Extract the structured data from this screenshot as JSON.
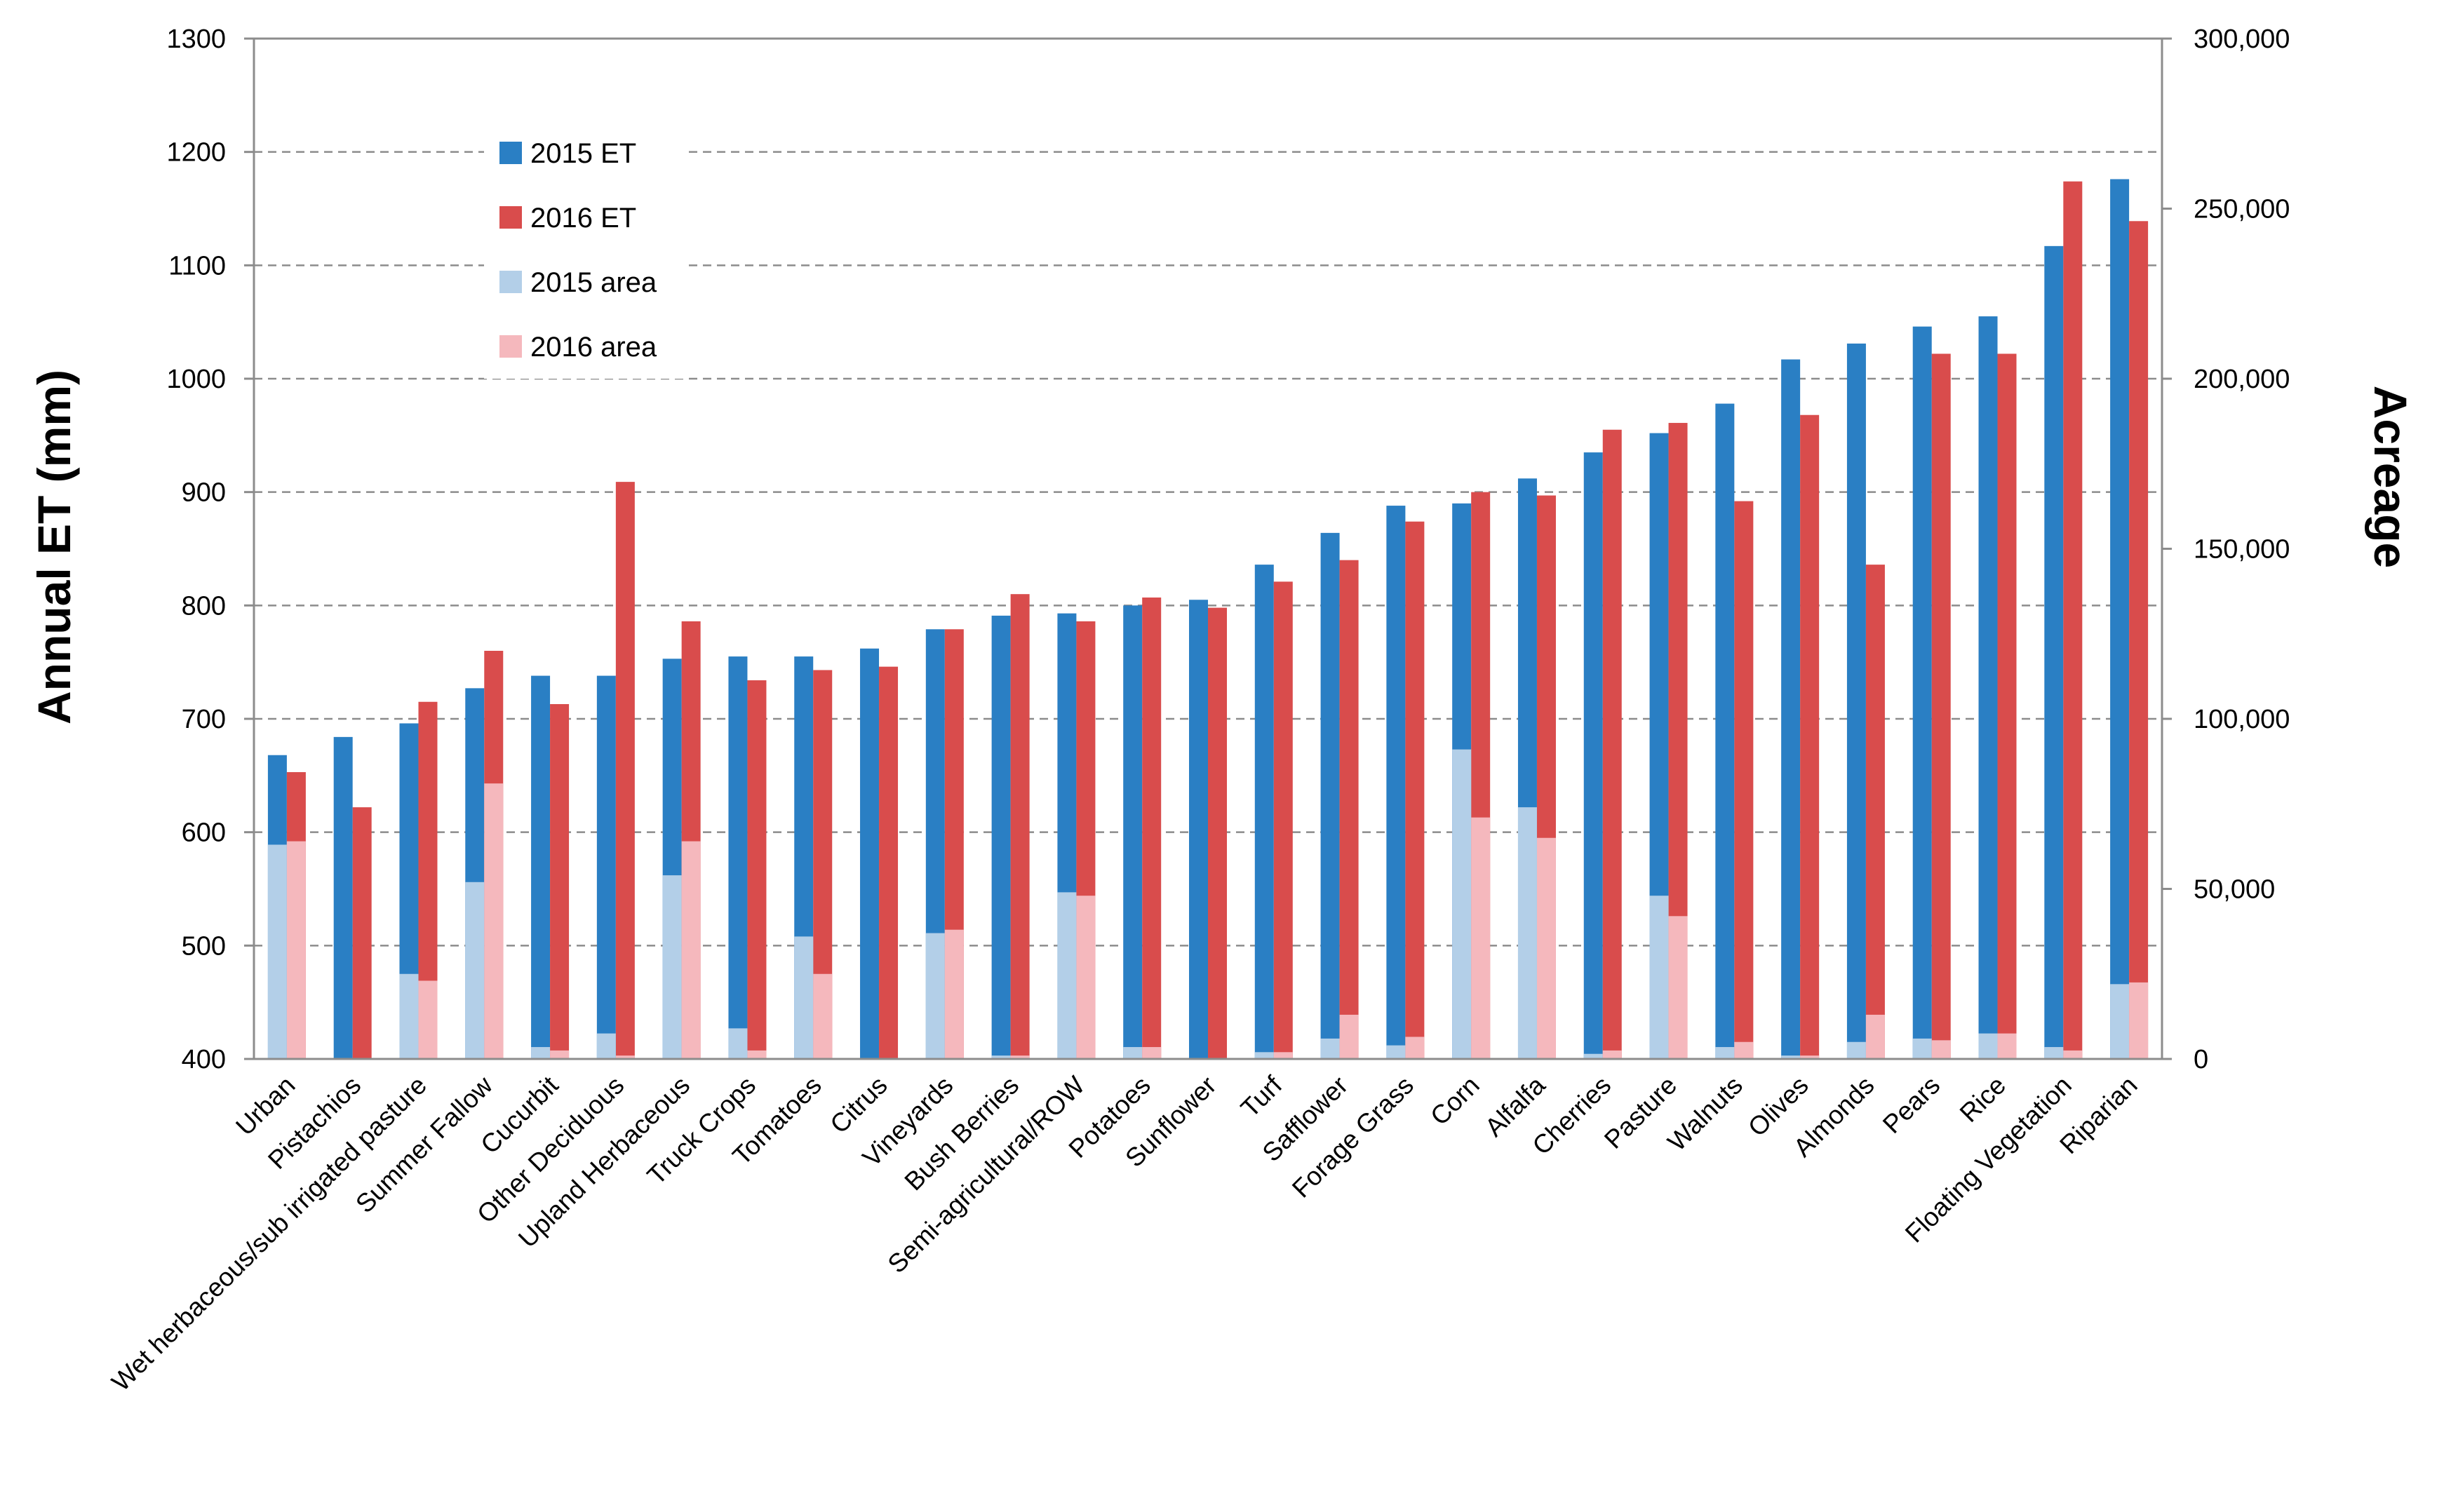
{
  "chart_data": {
    "type": "bar",
    "title": "",
    "xlabel": "",
    "ylabel": "Annual ET (mm)",
    "y2label": "Acreage",
    "ylim": [
      400,
      1300
    ],
    "y2lim": [
      0,
      300000
    ],
    "yticks": [
      "400",
      "500",
      "600",
      "700",
      "800",
      "900",
      "1000",
      "1100",
      "1200",
      "1300"
    ],
    "y2ticks": [
      "0",
      "50,000",
      "100,000",
      "150,000",
      "200,000",
      "250,000",
      "300,000"
    ],
    "grid": "horizontal dashed",
    "legend_position": "top-left",
    "colors": {
      "et2015": "#2a7fc4",
      "et2016": "#d94c4c",
      "area2015": "#b3cfe8",
      "area2016": "#f5b8bd"
    },
    "categories": [
      "Urban",
      "Pistachios",
      "Wet herbaceous/sub irrigated pasture",
      "Summer Fallow",
      "Cucurbit",
      "Other Deciduous",
      "Upland Herbaceous",
      "Truck Crops",
      "Tomatoes",
      "Citrus",
      "Vineyards",
      "Bush Berries",
      "Semi-agricultural/ROW",
      "Potatoes",
      "Sunflower",
      "Turf",
      "Safflower",
      "Forage Grass",
      "Corn",
      "Alfalfa",
      "Cherries",
      "Pasture",
      "Walnuts",
      "Olives",
      "Almonds",
      "Pears",
      "Rice",
      "Floating Vegetation",
      "Riparian"
    ],
    "series": [
      {
        "name": "2015 ET",
        "axis": "left",
        "values": [
          668,
          684,
          696,
          727,
          738,
          738,
          753,
          755,
          755,
          762,
          779,
          791,
          793,
          800,
          805,
          836,
          864,
          888,
          890,
          912,
          935,
          952,
          978,
          1017,
          1031,
          1046,
          1055,
          1117,
          1176
        ]
      },
      {
        "name": "2016 ET",
        "axis": "left",
        "values": [
          653,
          622,
          715,
          760,
          713,
          909,
          786,
          734,
          743,
          746,
          779,
          810,
          786,
          807,
          798,
          821,
          840,
          874,
          900,
          897,
          955,
          961,
          892,
          968,
          836,
          1022,
          1022,
          1174,
          1139
        ]
      },
      {
        "name": "2015 area",
        "axis": "right",
        "values": [
          63000,
          0,
          25000,
          52000,
          3500,
          7500,
          54000,
          9000,
          36000,
          0,
          37000,
          1000,
          49000,
          3500,
          0,
          2000,
          6000,
          4000,
          91000,
          74000,
          1500,
          48000,
          3500,
          1000,
          5000,
          6000,
          7500,
          3500,
          22000
        ]
      },
      {
        "name": "2016 area",
        "axis": "right",
        "values": [
          64000,
          0,
          23000,
          81000,
          2500,
          1000,
          64000,
          2500,
          25000,
          0,
          38000,
          1000,
          48000,
          3500,
          0,
          2000,
          13000,
          6500,
          71000,
          65000,
          2500,
          42000,
          5000,
          1000,
          13000,
          5500,
          7500,
          2500,
          22500
        ]
      }
    ]
  }
}
